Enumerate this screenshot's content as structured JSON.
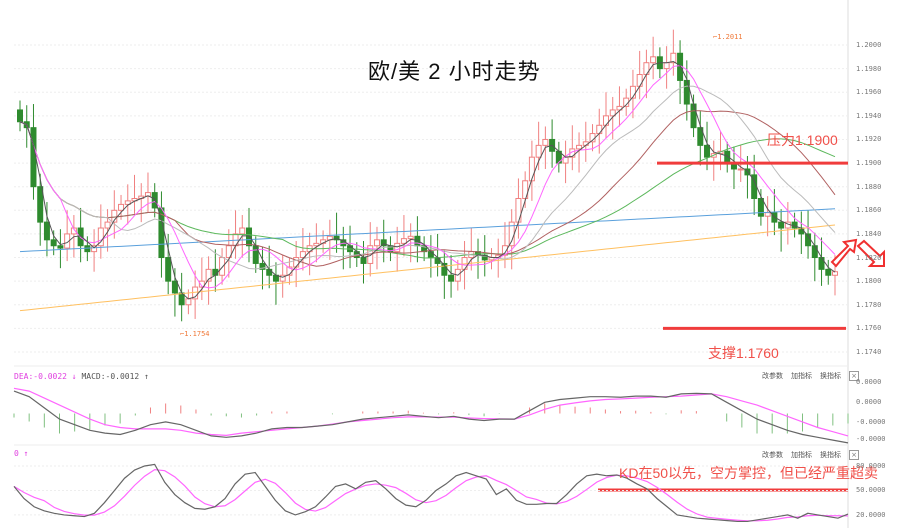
{
  "title": "欧/美 2 小时走势",
  "annotations": {
    "resistance": "压力1.1900",
    "support": "支撑1.1760",
    "kd_note": "KD在50以先，空方掌控，但已经严重超卖"
  },
  "colors": {
    "up": "#f08080",
    "down": "#2e8b2e",
    "level_line": "#f03c3c",
    "ma_black": "#555555",
    "ma_pink": "#ff66ff",
    "ma_gray": "#bbbbbb",
    "ma_brown": "#b06060",
    "ma_green": "#5cb85c",
    "ma_blue": "#5aa0dc",
    "ma_orange": "#ffc060",
    "macd_pos": "#f08080",
    "macd_neg": "#80c080"
  },
  "price_axis": {
    "ticks": [
      "1.2000",
      "1.1980",
      "1.1960",
      "1.1940",
      "1.1920",
      "1.1900",
      "1.1880",
      "1.1860",
      "1.1840",
      "1.1820",
      "1.1800",
      "1.1780",
      "1.1760",
      "1.1740"
    ]
  },
  "extremes": {
    "high_label": "1.2011",
    "low_label": "1.1754"
  },
  "macd_panel": {
    "header_dea": "DEA:-0.0022 ↓",
    "header_macd": "MACD:-0.0012 ↑",
    "axis": [
      "0.0000",
      "0.0000",
      "-0.0000",
      "-0.0000"
    ],
    "tools": [
      "改参数",
      "加指标",
      "换指标"
    ],
    "close": "×"
  },
  "kd_panel": {
    "header": "0 ↑",
    "axis": [
      "80.0000",
      "50.0000",
      "20.0000"
    ],
    "tools": [
      "改参数",
      "加指标",
      "换指标"
    ],
    "close": "×"
  },
  "chart_data": {
    "type": "candlestick",
    "title": "欧/美 2 小时走势",
    "instrument": "EUR/USD",
    "timeframe": "2H",
    "ylim": [
      1.1735,
      1.2015
    ],
    "levels": [
      {
        "name": "压力 (resistance)",
        "value": 1.19
      },
      {
        "name": "支撑 (support)",
        "value": 1.176
      }
    ],
    "marked_high": 1.2011,
    "marked_low": 1.1754,
    "closes_approx": [
      1.1935,
      1.193,
      1.188,
      1.185,
      1.1835,
      1.183,
      1.1828,
      1.184,
      1.1845,
      1.183,
      1.1825,
      1.183,
      1.1845,
      1.185,
      1.186,
      1.1865,
      1.1868,
      1.187,
      1.1872,
      1.1875,
      1.1862,
      1.182,
      1.18,
      1.179,
      1.178,
      1.1785,
      1.1795,
      1.18,
      1.181,
      1.1805,
      1.182,
      1.183,
      1.184,
      1.1845,
      1.183,
      1.1815,
      1.181,
      1.1805,
      1.18,
      1.1805,
      1.1812,
      1.182,
      1.1825,
      1.183,
      1.1832,
      1.1835,
      1.1838,
      1.1835,
      1.183,
      1.1825,
      1.182,
      1.1815,
      1.183,
      1.1835,
      1.183,
      1.1825,
      1.1832,
      1.1836,
      1.1838,
      1.183,
      1.1825,
      1.182,
      1.1815,
      1.1805,
      1.18,
      1.181,
      1.182,
      1.1825,
      1.1822,
      1.1818,
      1.182,
      1.1822,
      1.183,
      1.185,
      1.187,
      1.1885,
      1.1905,
      1.1915,
      1.192,
      1.191,
      1.19,
      1.1905,
      1.1912,
      1.1915,
      1.1918,
      1.1925,
      1.1932,
      1.194,
      1.1945,
      1.1948,
      1.1955,
      1.1965,
      1.1975,
      1.1985,
      1.199,
      1.198,
      1.1985,
      1.1993,
      1.197,
      1.195,
      1.193,
      1.1915,
      1.1905,
      1.1908,
      1.191,
      1.19,
      1.1895,
      1.1895,
      1.189,
      1.187,
      1.1855,
      1.1858,
      1.185,
      1.1845,
      1.185,
      1.1845,
      1.184,
      1.183,
      1.182,
      1.181,
      1.1805,
      1.1808
    ]
  },
  "macd_data": {
    "dif": [
      0.8,
      0.6,
      0.2,
      -0.2,
      -0.4,
      -0.6,
      -0.7,
      -0.75,
      -0.6,
      -0.4,
      -0.3,
      -0.4,
      -0.6,
      -0.8,
      -0.85,
      -0.8,
      -0.7,
      -0.55,
      -0.5,
      -0.5,
      -0.45,
      -0.4,
      -0.3,
      -0.2,
      -0.15,
      -0.1,
      -0.05,
      -0.1,
      -0.15,
      -0.1,
      -0.2,
      -0.25,
      -0.2,
      -0.2,
      0.1,
      0.4,
      0.5,
      0.55,
      0.6,
      0.6,
      0.58,
      0.62,
      0.62,
      0.58,
      0.7,
      0.72,
      0.7,
      0.4,
      0.1,
      -0.2,
      -0.4,
      -0.6,
      -0.75,
      -0.85,
      -0.95,
      -1.05
    ],
    "dea": [
      0.9,
      0.8,
      0.55,
      0.3,
      0.05,
      -0.2,
      -0.4,
      -0.5,
      -0.55,
      -0.55,
      -0.55,
      -0.6,
      -0.7,
      -0.75,
      -0.78,
      -0.7,
      -0.65,
      -0.6,
      -0.55,
      -0.5,
      -0.45,
      -0.38,
      -0.3,
      -0.25,
      -0.2,
      -0.15,
      -0.12,
      -0.12,
      -0.13,
      -0.13,
      -0.16,
      -0.18,
      -0.19,
      -0.2,
      -0.05,
      0.15,
      0.3,
      0.38,
      0.45,
      0.5,
      0.52,
      0.55,
      0.58,
      0.6,
      0.62,
      0.66,
      0.7,
      0.6,
      0.45,
      0.3,
      0.1,
      -0.1,
      -0.3,
      -0.5,
      -0.65,
      -0.8
    ]
  },
  "kd_data": {
    "k": [
      55,
      40,
      30,
      25,
      22,
      20,
      19,
      18,
      22,
      35,
      50,
      65,
      75,
      80,
      82,
      60,
      45,
      35,
      28,
      27,
      30,
      40,
      58,
      70,
      72,
      55,
      38,
      25,
      20,
      24,
      30,
      42,
      55,
      58,
      52,
      60,
      62,
      52,
      40,
      32,
      30,
      38,
      50,
      58,
      68,
      72,
      68,
      64,
      45,
      52,
      38,
      33,
      33,
      34,
      34,
      45,
      58,
      68,
      70,
      68,
      69,
      65,
      58,
      52,
      40,
      30,
      20,
      18,
      16,
      15,
      14,
      13,
      12,
      12,
      14,
      16,
      18,
      20,
      16,
      22,
      20,
      18,
      16,
      21
    ]
  }
}
